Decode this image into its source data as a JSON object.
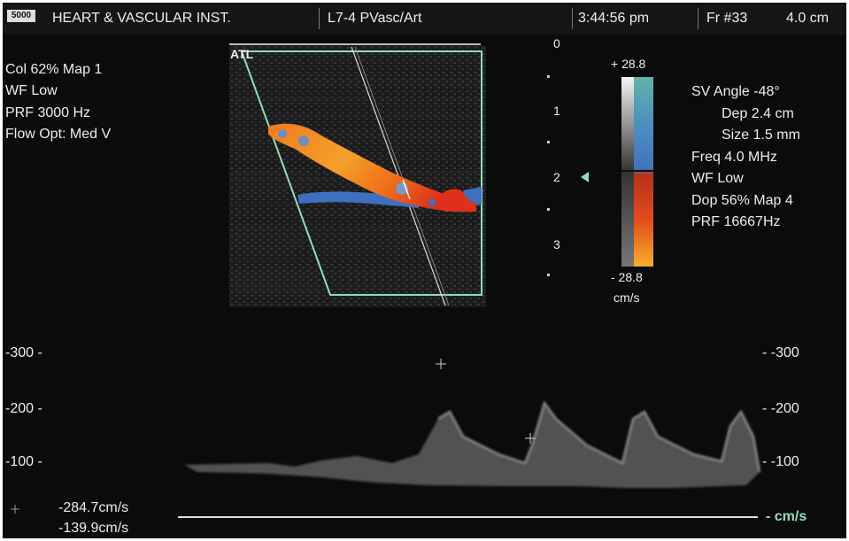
{
  "header": {
    "logo": "5000",
    "institution": "HEART & VASCULAR INST.",
    "probe": "L7-4 PVasc/Art",
    "time": "3:44:56 pm",
    "frame": "Fr #33",
    "depth": "4.0 cm"
  },
  "left_params": {
    "col": "Col 62%  Map 1",
    "wf": "WF Low",
    "prf": "PRF 3000  Hz",
    "flow": "Flow Opt: Med V"
  },
  "right_params": {
    "sv_angle": "SV Angle -48°",
    "dep": "Dep 2.4  cm",
    "size": "Size 1.5  mm",
    "freq": "Freq 4.0  MHz",
    "wf": "WF Low",
    "dop": "Dop 56%  Map 4",
    "prf": "PRF 16667Hz"
  },
  "image_label": "ATL",
  "depth_scale": [
    "0",
    "1",
    "2",
    "3"
  ],
  "color_scale": {
    "top": "+ 28.8",
    "bottom": "- 28.8",
    "unit": "cm/s",
    "colors": [
      "#f4f4f4",
      "#3f74bd",
      "#5fb4a8",
      "#e34a1e",
      "#f5b025"
    ]
  },
  "spectral_scale_left": [
    "-300 -",
    "-200 -",
    "-100 -"
  ],
  "spectral_scale_right": [
    "- -300",
    "- -200",
    "- -100"
  ],
  "measurements": [
    "-284.7cm/s",
    "-139.9cm/s"
  ],
  "baseline_unit": "- cm/s"
}
